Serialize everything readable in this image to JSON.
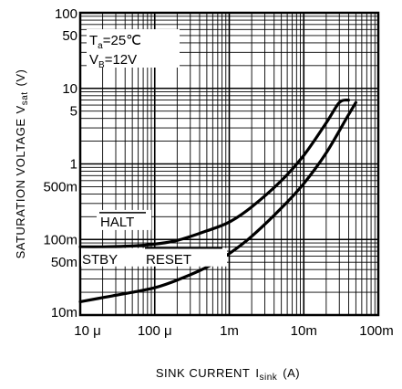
{
  "chart_data": {
    "type": "line",
    "title": "",
    "xlabel": "SINK CURRENT",
    "xlabel_sub": "sink",
    "xlabel_prefix": "I",
    "xlabel_unit": "(A)",
    "ylabel": "SATURATION VOLTAGE",
    "ylabel_prefix": "V",
    "ylabel_sub": "sat",
    "ylabel_unit": "(V)",
    "x_scale": "log",
    "y_scale": "log",
    "xlim": [
      1e-05,
      0.1
    ],
    "ylim": [
      0.01,
      100
    ],
    "grid": true,
    "x_ticks": [
      {
        "value": 1e-05,
        "label": "10 μ"
      },
      {
        "value": 0.0001,
        "label": "100 μ"
      },
      {
        "value": 0.001,
        "label": "1m"
      },
      {
        "value": 0.01,
        "label": "10m"
      },
      {
        "value": 0.1,
        "label": "100m"
      }
    ],
    "y_ticks": [
      {
        "value": 100,
        "label": "100"
      },
      {
        "value": 50,
        "label": "50"
      },
      {
        "value": 10,
        "label": "10"
      },
      {
        "value": 5,
        "label": "5"
      },
      {
        "value": 1,
        "label": "1"
      },
      {
        "value": 0.5,
        "label": "500m"
      },
      {
        "value": 0.1,
        "label": "100m"
      },
      {
        "value": 0.05,
        "label": "50m"
      },
      {
        "value": 0.01,
        "label": "10m"
      }
    ],
    "conditions": {
      "ta_prefix": "T",
      "ta_sub": "a",
      "ta_value": "=25℃",
      "vb_prefix": "V",
      "vb_sub": "B",
      "vb_value": "=12V"
    },
    "series": [
      {
        "name": "HALT",
        "x": [
          1e-05,
          2e-05,
          5e-05,
          0.0001,
          0.0002,
          0.0005,
          0.001,
          0.002,
          0.005,
          0.01,
          0.02,
          0.03,
          0.04
        ],
        "y": [
          0.08,
          0.08,
          0.082,
          0.087,
          0.097,
          0.13,
          0.17,
          0.27,
          0.6,
          1.3,
          3.5,
          6.5,
          7.0
        ]
      },
      {
        "name_parts": [
          "STBY",
          "RESET"
        ],
        "x": [
          1e-05,
          2e-05,
          5e-05,
          0.0001,
          0.0002,
          0.0005,
          0.001,
          0.002,
          0.005,
          0.01,
          0.02,
          0.04,
          0.05
        ],
        "y": [
          0.015,
          0.017,
          0.02,
          0.023,
          0.029,
          0.043,
          0.065,
          0.11,
          0.26,
          0.55,
          1.4,
          4.5,
          6.5
        ]
      }
    ]
  }
}
